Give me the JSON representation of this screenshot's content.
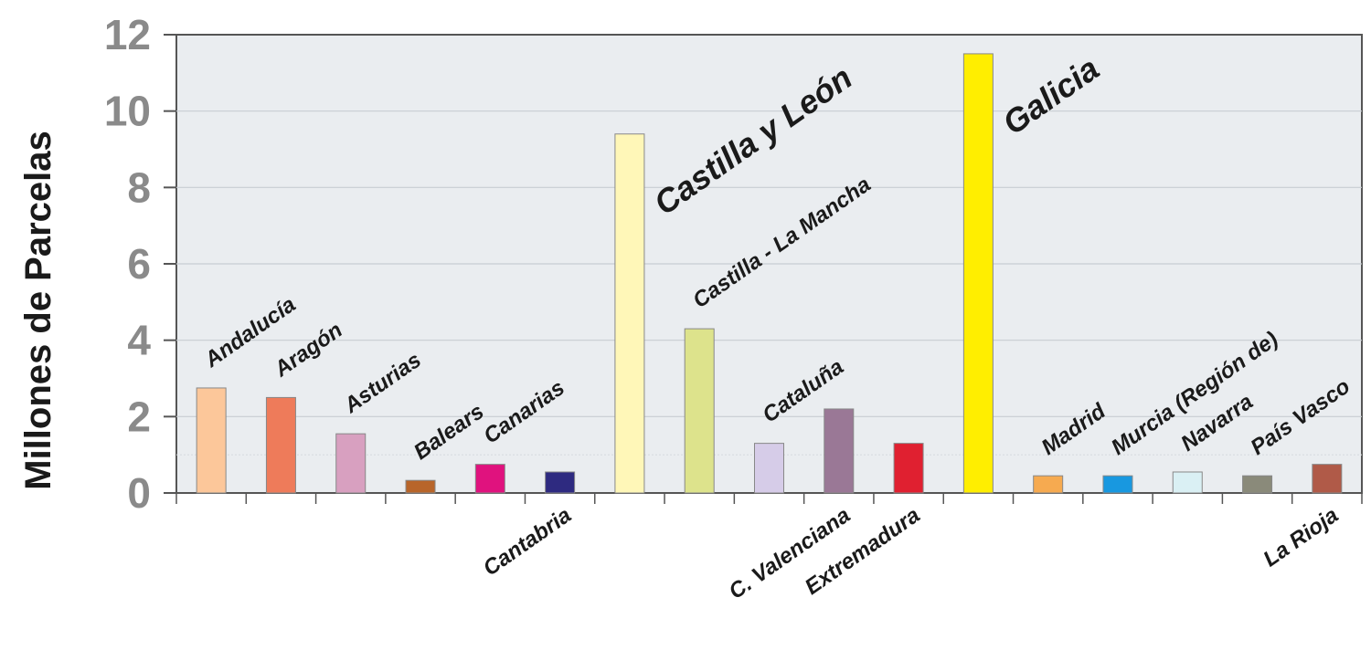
{
  "chart_data": {
    "type": "bar",
    "title": "",
    "xlabel": "",
    "ylabel": "Millones de Parcelas",
    "ylim": [
      0,
      12
    ],
    "yticks": [
      0,
      2,
      4,
      6,
      8,
      10,
      12
    ],
    "grid": true,
    "legend": "none",
    "categories": [
      "Andalucía",
      "Aragón",
      "Asturias",
      "Balears",
      "Canarias",
      "Cantabria",
      "Castilla y León",
      "Castilla - La Mancha",
      "Cataluña",
      "C. Valenciana",
      "Extremadura",
      "Galicia",
      "Madrid",
      "Murcia (Región de)",
      "Navarra",
      "País Vasco",
      "La Rioja"
    ],
    "values": [
      2.75,
      2.5,
      1.55,
      0.33,
      0.75,
      0.55,
      9.4,
      4.3,
      1.3,
      2.2,
      1.3,
      11.5,
      0.45,
      0.45,
      0.55,
      0.45,
      0.75
    ],
    "colors": [
      "#fcc79a",
      "#ee7b5a",
      "#d8a0c0",
      "#b8652a",
      "#e0127e",
      "#2e2a80",
      "#fff7b8",
      "#dde38c",
      "#d6cce8",
      "#9a7896",
      "#e02030",
      "#ffee00",
      "#f6aa50",
      "#1898e0",
      "#daf0f4",
      "#8a8a7a",
      "#b05a48"
    ],
    "label_positions": [
      "above",
      "above",
      "above",
      "above",
      "above",
      "below",
      "above",
      "above",
      "above",
      "below",
      "below",
      "above",
      "above",
      "above",
      "above",
      "above",
      "below"
    ]
  }
}
